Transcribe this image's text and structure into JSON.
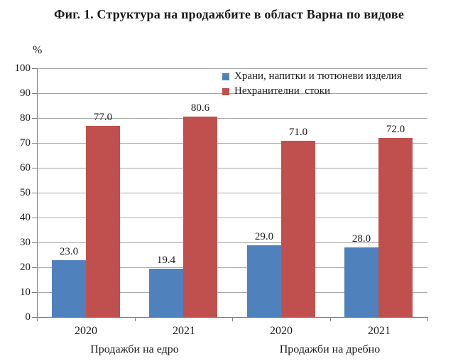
{
  "chart_data": {
    "type": "bar",
    "title": "Фиг. 1. Структура на продажбите в област Варна по видове",
    "ylabel": "%",
    "ylim": [
      0,
      100
    ],
    "ytick_step": 10,
    "grid": true,
    "legend_position": "top-right-inside",
    "categories": [
      "2020",
      "2021",
      "2020",
      "2021"
    ],
    "group_labels": [
      "Продажби на едро",
      "Продажби на дребно"
    ],
    "series": [
      {
        "name": "Храни, напитки и тютюневи изделия",
        "color": "#4F81BD",
        "values": [
          23.0,
          19.4,
          29.0,
          28.0
        ]
      },
      {
        "name": "Нехранителни  стоки",
        "color": "#C0504D",
        "values": [
          77.0,
          80.6,
          71.0,
          72.0
        ]
      }
    ],
    "value_label_decimals": 1,
    "colors": {
      "axis": "#7f7f7f",
      "gridline": "#a6a6a6",
      "text": "#1a1a1a",
      "background": "#ffffff"
    }
  }
}
